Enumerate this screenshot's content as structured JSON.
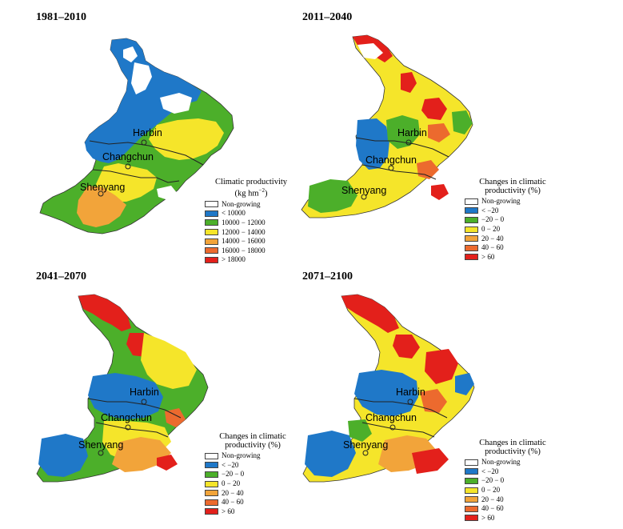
{
  "panels": [
    {
      "period": "1981–2010",
      "cities": {
        "harbin": "Harbin",
        "changchun": "Changchun",
        "shenyang": "Shenyang"
      }
    },
    {
      "period": "2011–2040",
      "cities": {
        "harbin": "Harbin",
        "changchun": "Changchun",
        "shenyang": "Shenyang"
      }
    },
    {
      "period": "2041–2070",
      "cities": {
        "harbin": "Harbin",
        "changchun": "Changchun",
        "shenyang": "Shenyang"
      }
    },
    {
      "period": "2071–2100",
      "cities": {
        "harbin": "Harbin",
        "changchun": "Changchun",
        "shenyang": "Shenyang"
      }
    }
  ],
  "legend_productivity": {
    "title_line1": "Climatic productivity",
    "title_unit_base": "(kg hm",
    "title_unit_exp": "−2",
    "title_unit_close": ")",
    "items": [
      {
        "label": "Non-growing",
        "color": "#ffffff"
      },
      {
        "label": "< 10000",
        "color": "#1f78c8"
      },
      {
        "label": "10000 − 12000",
        "color": "#4caf2a"
      },
      {
        "label": "12000 − 14000",
        "color": "#f5e52a"
      },
      {
        "label": "14000 − 16000",
        "color": "#f2a43a"
      },
      {
        "label": "16000 − 18000",
        "color": "#ec6a2e"
      },
      {
        "label": "> 18000",
        "color": "#e3201b"
      }
    ]
  },
  "legend_changes": {
    "title_line1": "Changes in climatic",
    "title_line2": "productivity (%)",
    "items": [
      {
        "label": "Non-growing",
        "color": "#ffffff"
      },
      {
        "label": "< −20",
        "color": "#1f78c8"
      },
      {
        "label": "−20 − 0",
        "color": "#4caf2a"
      },
      {
        "label": "0 − 20",
        "color": "#f5e52a"
      },
      {
        "label": "20 − 40",
        "color": "#f2a43a"
      },
      {
        "label": "40 − 60",
        "color": "#ec6a2e"
      },
      {
        "label": "> 60",
        "color": "#e3201b"
      }
    ]
  },
  "colors": {
    "blue": "#1f78c8",
    "green": "#4caf2a",
    "yellow": "#f5e52a",
    "light_orange": "#f2a43a",
    "orange": "#ec6a2e",
    "red": "#e3201b",
    "boundary": "#222222",
    "non_growing": "#ffffff"
  }
}
